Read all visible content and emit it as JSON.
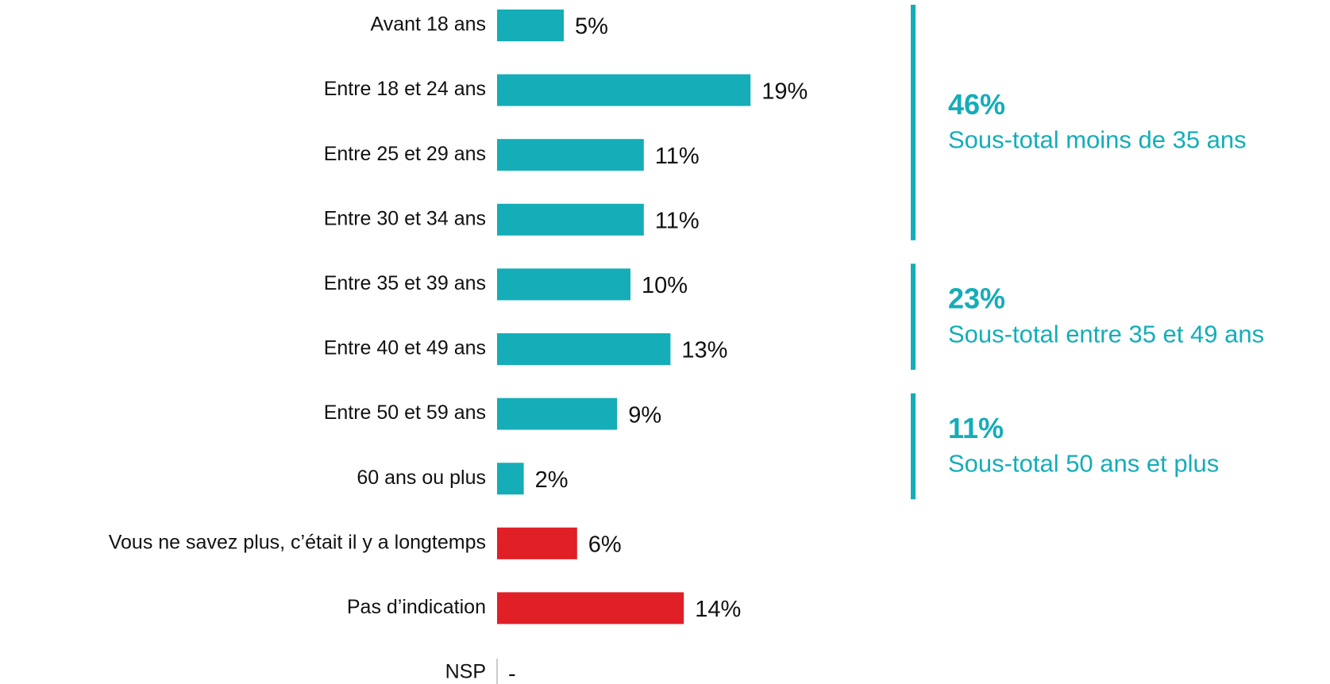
{
  "chart_data": {
    "type": "bar",
    "orientation": "horizontal",
    "categories": [
      "Avant 18 ans",
      "Entre 18 et 24 ans",
      "Entre 25 et 29 ans",
      "Entre 30 et 34 ans",
      "Entre 35 et 39 ans",
      "Entre 40 et 49 ans",
      "Entre 50 et 59 ans",
      "60 ans ou plus",
      "Vous ne savez plus, c’était il y a longtemps",
      "Pas d’indication",
      "NSP"
    ],
    "values": [
      5,
      19,
      11,
      11,
      10,
      13,
      9,
      2,
      6,
      14,
      null
    ],
    "value_labels": [
      "5%",
      "19%",
      "11%",
      "11%",
      "10%",
      "13%",
      "9%",
      "2%",
      "6%",
      "14%",
      "-"
    ],
    "colors": [
      "#14adb8",
      "#14adb8",
      "#14adb8",
      "#14adb8",
      "#14adb8",
      "#14adb8",
      "#14adb8",
      "#14adb8",
      "#e01f26",
      "#e01f26",
      null
    ],
    "annotations": [
      {
        "value": 46,
        "label": "46%",
        "text": "Sous-total moins de 35 ans"
      },
      {
        "value": 23,
        "label": "23%",
        "text": "Sous-total entre 35 et 49 ans"
      },
      {
        "value": 11,
        "label": "11%",
        "text": "Sous-total 50 ans et plus"
      }
    ],
    "annotation_color": "#14adb8"
  }
}
